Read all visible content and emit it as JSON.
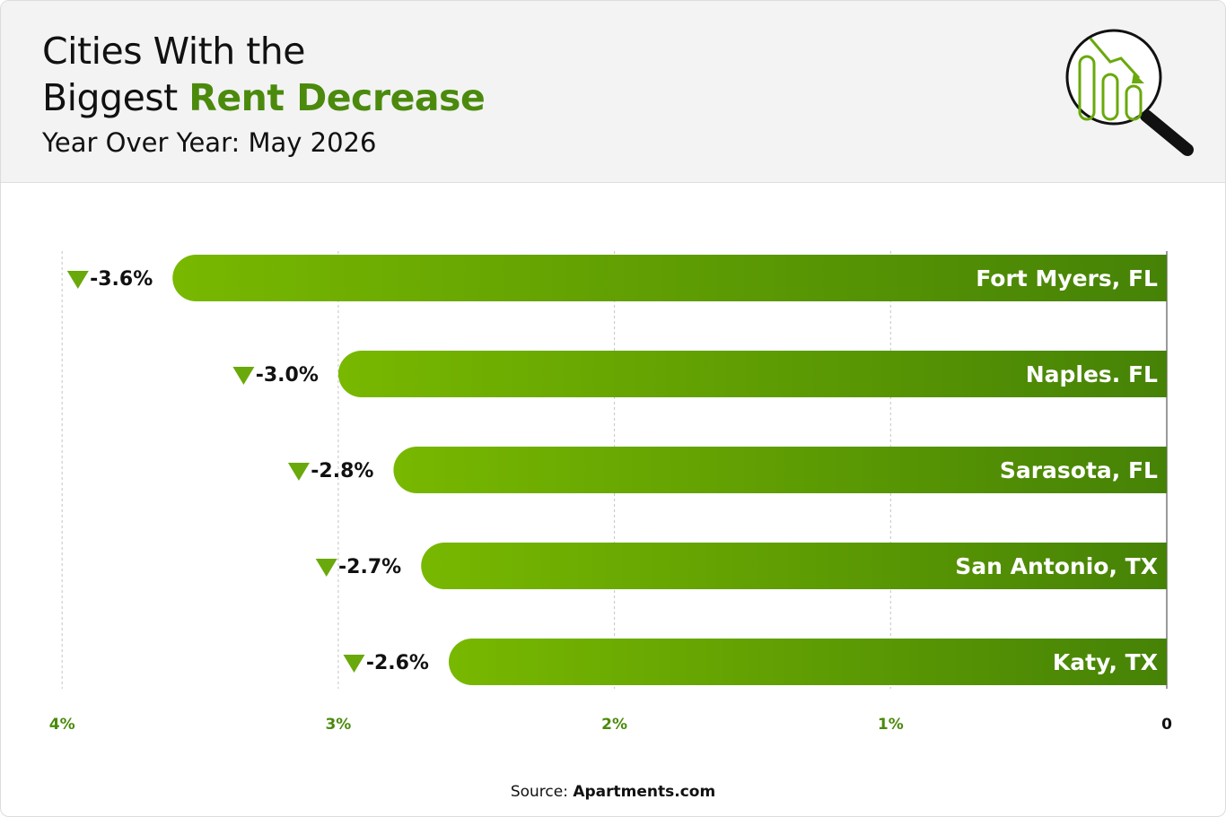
{
  "header": {
    "title_line1": "Cities With the",
    "title_line2_prefix": "Biggest",
    "title_line2_accent": "Rent Decrease",
    "subtitle": "Year Over Year: May 2026",
    "icon": "magnifier-declining-chart-icon"
  },
  "source": {
    "label": "Source:",
    "name": "Apartments.com"
  },
  "colors": {
    "accent": "#4b8a0c",
    "bar_start": "#78b800",
    "bar_end": "#468206",
    "marker": "#6aa90b"
  },
  "chart_data": {
    "type": "bar",
    "orientation": "horizontal",
    "categories": [
      "Fort Myers, FL",
      "Naples. FL",
      "Sarasota, FL",
      "San Antonio, TX",
      "Katy, TX"
    ],
    "values": [
      -3.6,
      -3.0,
      -2.8,
      -2.7,
      -2.6
    ],
    "value_labels": [
      "-3.6%",
      "-3.0%",
      "-2.8%",
      "-2.7%",
      "-2.6%"
    ],
    "xticks": [
      "4%",
      "3%",
      "2%",
      "1%",
      "0"
    ],
    "xlim": [
      0,
      4
    ],
    "grid": true
  }
}
